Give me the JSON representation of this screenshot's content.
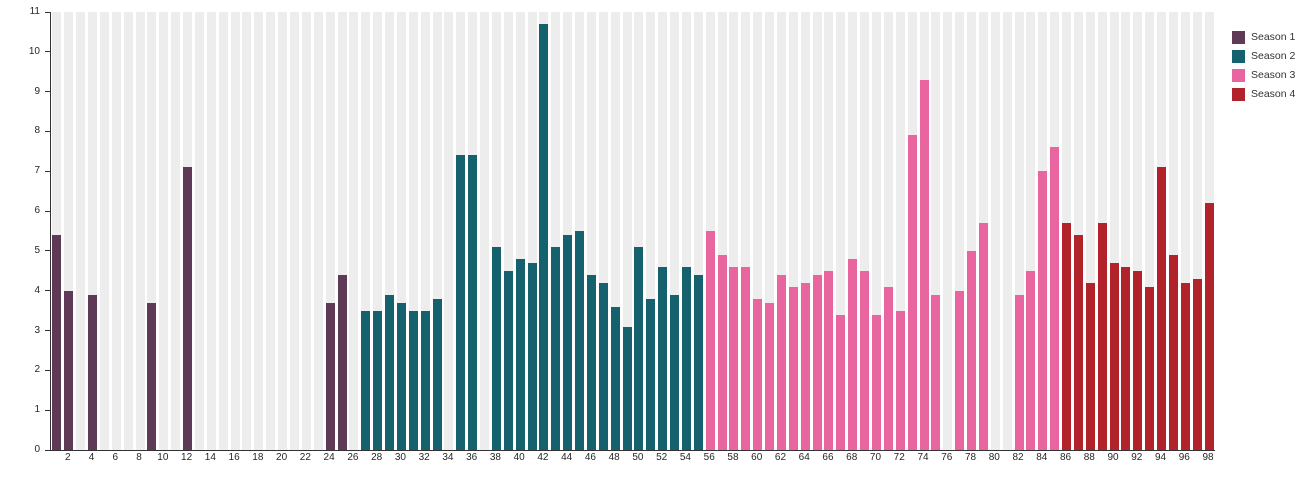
{
  "chart_data": {
    "type": "bar",
    "title": "",
    "xlabel": "",
    "ylabel": "",
    "x_range": [
      1,
      98
    ],
    "ylim": [
      0,
      11
    ],
    "y_ticks": [
      0,
      1,
      2,
      3,
      4,
      5,
      6,
      7,
      8,
      9,
      10,
      11
    ],
    "x_ticks": [
      2,
      4,
      6,
      8,
      10,
      12,
      14,
      16,
      18,
      20,
      22,
      24,
      26,
      28,
      30,
      32,
      34,
      36,
      38,
      40,
      42,
      44,
      46,
      48,
      50,
      52,
      54,
      56,
      58,
      60,
      62,
      64,
      66,
      68,
      70,
      72,
      74,
      76,
      78,
      80,
      82,
      84,
      86,
      88,
      90,
      92,
      94,
      96,
      98
    ],
    "grid": "vertical category stripes",
    "legend_position": "top-right-outside",
    "series": [
      {
        "name": "Season 1",
        "color": "#5e3a56",
        "bars": [
          {
            "x": 1,
            "y": 5.4
          },
          {
            "x": 2,
            "y": 4.0
          },
          {
            "x": 4,
            "y": 3.9
          },
          {
            "x": 9,
            "y": 3.7
          },
          {
            "x": 12,
            "y": 7.1
          },
          {
            "x": 24,
            "y": 3.7
          },
          {
            "x": 25,
            "y": 4.4
          }
        ]
      },
      {
        "name": "Season 2",
        "color": "#15626e",
        "bars": [
          {
            "x": 27,
            "y": 3.5
          },
          {
            "x": 28,
            "y": 3.5
          },
          {
            "x": 29,
            "y": 3.9
          },
          {
            "x": 30,
            "y": 3.7
          },
          {
            "x": 31,
            "y": 3.5
          },
          {
            "x": 32,
            "y": 3.5
          },
          {
            "x": 33,
            "y": 3.8
          },
          {
            "x": 35,
            "y": 7.4
          },
          {
            "x": 36,
            "y": 7.4
          },
          {
            "x": 38,
            "y": 5.1
          },
          {
            "x": 39,
            "y": 4.5
          },
          {
            "x": 40,
            "y": 4.8
          },
          {
            "x": 41,
            "y": 4.7
          },
          {
            "x": 42,
            "y": 10.7
          },
          {
            "x": 43,
            "y": 5.1
          },
          {
            "x": 44,
            "y": 5.4
          },
          {
            "x": 45,
            "y": 5.5
          },
          {
            "x": 46,
            "y": 4.4
          },
          {
            "x": 47,
            "y": 4.2
          },
          {
            "x": 48,
            "y": 3.6
          },
          {
            "x": 49,
            "y": 3.1
          },
          {
            "x": 50,
            "y": 5.1
          },
          {
            "x": 51,
            "y": 3.8
          },
          {
            "x": 52,
            "y": 4.6
          },
          {
            "x": 53,
            "y": 3.9
          },
          {
            "x": 54,
            "y": 4.6
          },
          {
            "x": 55,
            "y": 4.4
          }
        ]
      },
      {
        "name": "Season 3",
        "color": "#e8659f",
        "bars": [
          {
            "x": 56,
            "y": 5.5
          },
          {
            "x": 57,
            "y": 4.9
          },
          {
            "x": 58,
            "y": 4.6
          },
          {
            "x": 59,
            "y": 4.6
          },
          {
            "x": 60,
            "y": 3.8
          },
          {
            "x": 61,
            "y": 3.7
          },
          {
            "x": 62,
            "y": 4.4
          },
          {
            "x": 63,
            "y": 4.1
          },
          {
            "x": 64,
            "y": 4.2
          },
          {
            "x": 65,
            "y": 4.4
          },
          {
            "x": 66,
            "y": 4.5
          },
          {
            "x": 67,
            "y": 3.4
          },
          {
            "x": 68,
            "y": 4.8
          },
          {
            "x": 69,
            "y": 4.5
          },
          {
            "x": 70,
            "y": 3.4
          },
          {
            "x": 71,
            "y": 4.1
          },
          {
            "x": 72,
            "y": 3.5
          },
          {
            "x": 73,
            "y": 7.9
          },
          {
            "x": 74,
            "y": 9.3
          },
          {
            "x": 75,
            "y": 3.9
          },
          {
            "x": 77,
            "y": 4.0
          },
          {
            "x": 78,
            "y": 5.0
          },
          {
            "x": 79,
            "y": 5.7
          },
          {
            "x": 82,
            "y": 3.9
          },
          {
            "x": 83,
            "y": 4.5
          },
          {
            "x": 84,
            "y": 7.0
          },
          {
            "x": 85,
            "y": 7.6
          }
        ]
      },
      {
        "name": "Season 4",
        "color": "#b2222a",
        "bars": [
          {
            "x": 86,
            "y": 5.7
          },
          {
            "x": 87,
            "y": 5.4
          },
          {
            "x": 88,
            "y": 4.2
          },
          {
            "x": 89,
            "y": 5.7
          },
          {
            "x": 90,
            "y": 4.7
          },
          {
            "x": 91,
            "y": 4.6
          },
          {
            "x": 92,
            "y": 4.5
          },
          {
            "x": 93,
            "y": 4.1
          },
          {
            "x": 94,
            "y": 7.1
          },
          {
            "x": 95,
            "y": 4.9
          },
          {
            "x": 96,
            "y": 4.2
          },
          {
            "x": 97,
            "y": 4.3
          },
          {
            "x": 98,
            "y": 6.2
          }
        ]
      }
    ]
  },
  "colors": {
    "stripe": "#ededed",
    "axis": "#333333",
    "text": "#262626",
    "background": "#ffffff"
  }
}
